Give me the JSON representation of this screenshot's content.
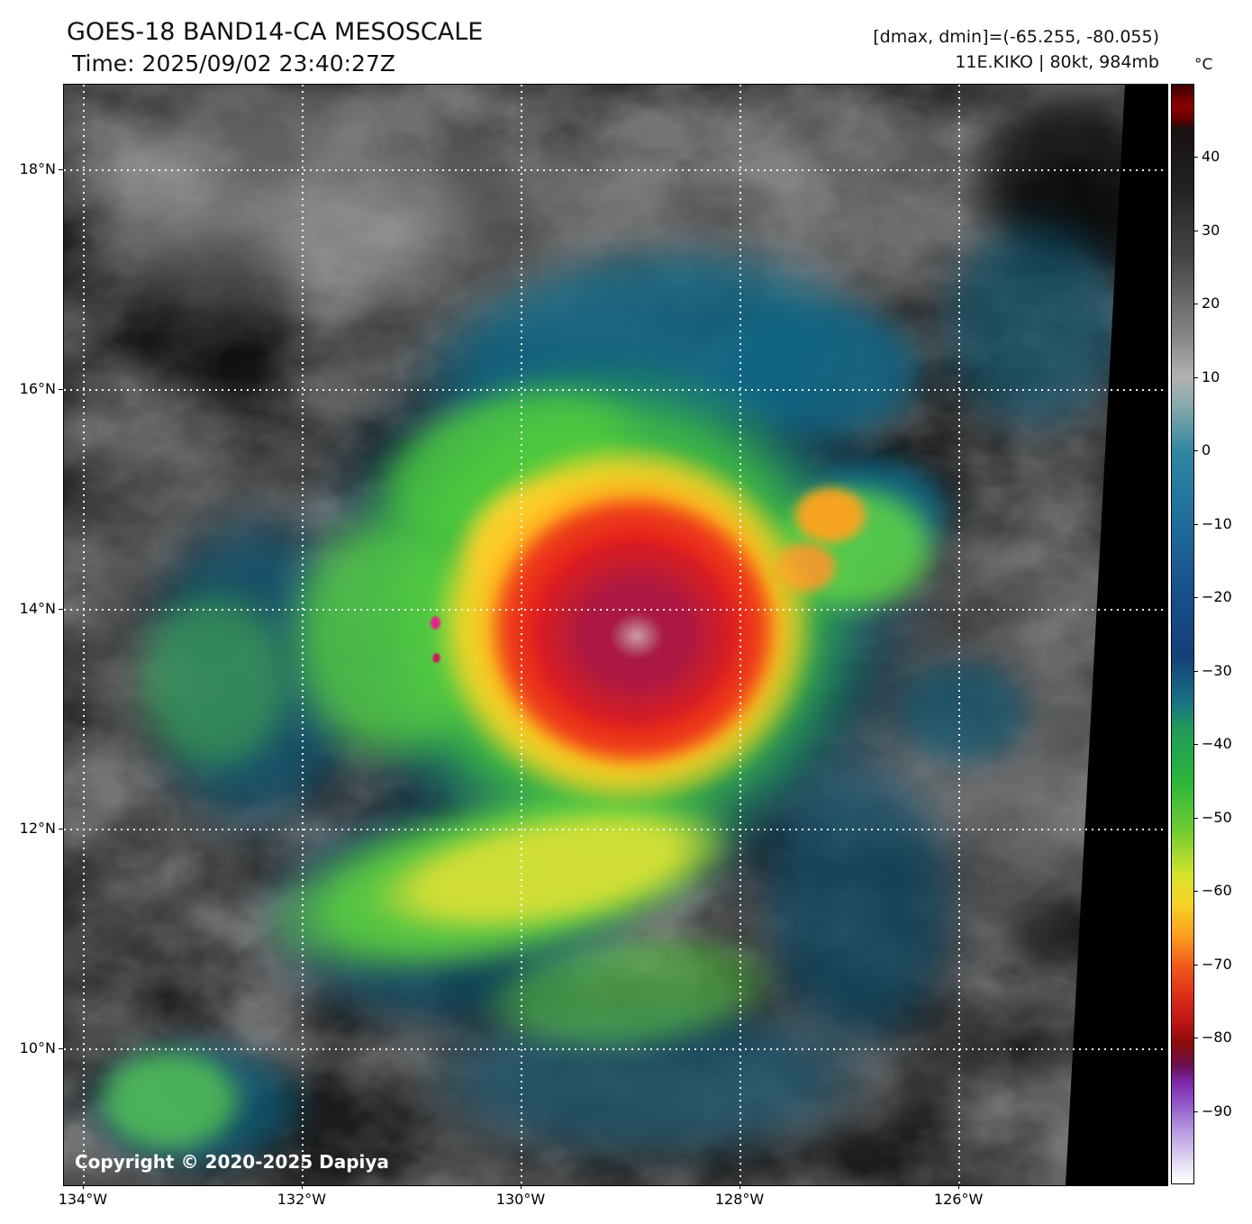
{
  "header": {
    "title": "GOES-18 BAND14-CA MESOSCALE",
    "time": "Time: 2025/09/02 23:40:27Z",
    "dmax_dmin": "[dmax, dmin]=(-65.255, -80.055)",
    "storm_info": "11E.KIKO | 80kt, 984mb"
  },
  "footer": {
    "copyright": "Copyright © 2020-2025 Dapiya"
  },
  "axes": {
    "lat": {
      "range": [
        18.78,
        8.76
      ],
      "ticks": [
        {
          "v": 18,
          "label": "18°N"
        },
        {
          "v": 16,
          "label": "16°N"
        },
        {
          "v": 14,
          "label": "14°N"
        },
        {
          "v": 12,
          "label": "12°N"
        },
        {
          "v": 10,
          "label": "10°N"
        }
      ]
    },
    "lon": {
      "range": [
        -134.18,
        -124.1
      ],
      "ticks": [
        {
          "v": -134,
          "label": "134°W"
        },
        {
          "v": -132,
          "label": "132°W"
        },
        {
          "v": -130,
          "label": "130°W"
        },
        {
          "v": -128,
          "label": "128°W"
        },
        {
          "v": -126,
          "label": "126°W"
        }
      ]
    }
  },
  "colorbar": {
    "unit": "°C",
    "range": [
      50,
      -100
    ],
    "ticks": [
      {
        "v": 40,
        "label": "40"
      },
      {
        "v": 30,
        "label": "30"
      },
      {
        "v": 20,
        "label": "20"
      },
      {
        "v": 10,
        "label": "10"
      },
      {
        "v": 0,
        "label": "0"
      },
      {
        "v": -10,
        "label": "−10"
      },
      {
        "v": -20,
        "label": "−20"
      },
      {
        "v": -30,
        "label": "−30"
      },
      {
        "v": -40,
        "label": "−40"
      },
      {
        "v": -50,
        "label": "−50"
      },
      {
        "v": -60,
        "label": "−60"
      },
      {
        "v": -70,
        "label": "−70"
      },
      {
        "v": -80,
        "label": "−80"
      },
      {
        "v": -90,
        "label": "−90"
      }
    ],
    "stops": [
      {
        "t": 50,
        "c": "#3f0000"
      },
      {
        "t": 47,
        "c": "#8b0000"
      },
      {
        "t": 45,
        "c": "#5a0000"
      },
      {
        "t": 44,
        "c": "#1a1010"
      },
      {
        "t": 36,
        "c": "#222222"
      },
      {
        "t": 26,
        "c": "#474747"
      },
      {
        "t": 16,
        "c": "#848484"
      },
      {
        "t": 10,
        "c": "#b2b2b2"
      },
      {
        "t": 6,
        "c": "#86a8ab"
      },
      {
        "t": 0,
        "c": "#2f86a0"
      },
      {
        "t": -10,
        "c": "#1f6c9c"
      },
      {
        "t": -20,
        "c": "#174e8b"
      },
      {
        "t": -28,
        "c": "#144079"
      },
      {
        "t": -34,
        "c": "#186f85"
      },
      {
        "t": -38,
        "c": "#1f9b59"
      },
      {
        "t": -45,
        "c": "#2ab53b"
      },
      {
        "t": -52,
        "c": "#73cc32"
      },
      {
        "t": -58,
        "c": "#d8e42c"
      },
      {
        "t": -62,
        "c": "#f8d225"
      },
      {
        "t": -66,
        "c": "#fba01e"
      },
      {
        "t": -70,
        "c": "#f25f1b"
      },
      {
        "t": -74,
        "c": "#df3217"
      },
      {
        "t": -78,
        "c": "#bd1414"
      },
      {
        "t": -81,
        "c": "#8a0b0b"
      },
      {
        "t": -84,
        "c": "#6b0f52"
      },
      {
        "t": -86,
        "c": "#7c24a8"
      },
      {
        "t": -89,
        "c": "#9055c6"
      },
      {
        "t": -93,
        "c": "#b79ce0"
      },
      {
        "t": -97,
        "c": "#e2d9f3"
      },
      {
        "t": -100,
        "c": "#ffffff"
      }
    ]
  },
  "chart_data": {
    "type": "heatmap",
    "subtype": "satellite-infrared-image",
    "title": "GOES-18 BAND14-CA MESOSCALE",
    "time": "2025/09/02 23:40:27Z",
    "satellite": "GOES-18",
    "band": "BAND14",
    "sector": "CA MESOSCALE",
    "storm": {
      "designation": "11E",
      "name": "KIKO",
      "intensity_kt": 80,
      "min_pressure_mb": 984
    },
    "dmax_c": -65.255,
    "dmin_c": -80.055,
    "x_axis": {
      "label": "longitude",
      "ticks": [
        "134°W",
        "132°W",
        "130°W",
        "128°W",
        "126°W"
      ],
      "range_deg_west": [
        134.2,
        124.1
      ]
    },
    "y_axis": {
      "label": "latitude",
      "ticks": [
        "10°N",
        "12°N",
        "14°N",
        "16°N",
        "18°N"
      ],
      "range_deg_north": [
        8.8,
        18.8
      ]
    },
    "colorbar": {
      "unit": "°C",
      "ticks": [
        40,
        30,
        20,
        10,
        0,
        -10,
        -20,
        -30,
        -40,
        -50,
        -60,
        -70,
        -80,
        -90
      ],
      "range": [
        50,
        -100
      ]
    },
    "grid": true,
    "storm_center_approx": {
      "lat_n": 13.8,
      "lon_w": 129.0
    },
    "coldest_cloud_tops_c": -80.055,
    "watermark": "Copyright © 2020-2025 Dapiya"
  }
}
